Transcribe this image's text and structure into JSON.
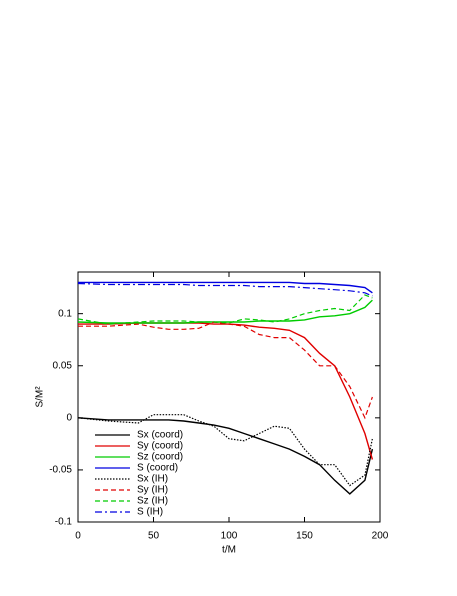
{
  "chart_data": {
    "type": "line",
    "xlabel": "t/M",
    "ylabel": "S/M²",
    "x": [
      0,
      20,
      40,
      50,
      60,
      70,
      80,
      90,
      100,
      110,
      120,
      130,
      140,
      150,
      160,
      170,
      180,
      190,
      195
    ],
    "xlim": [
      0,
      200
    ],
    "xticks": [
      0,
      50,
      100,
      150,
      200
    ],
    "ylim": [
      -0.1,
      0.14
    ],
    "yticks": [
      -0.1,
      -0.05,
      0,
      0.05,
      0.1
    ],
    "legend": "lower left",
    "series": [
      {
        "name": "Sx (coord)",
        "color": "#000000",
        "dash": "solid",
        "values": [
          0,
          -0.002,
          -0.002,
          -0.002,
          -0.002,
          -0.003,
          -0.005,
          -0.007,
          -0.01,
          -0.015,
          -0.02,
          -0.025,
          -0.03,
          -0.037,
          -0.045,
          -0.06,
          -0.073,
          -0.06,
          -0.03
        ]
      },
      {
        "name": "Sy (coord)",
        "color": "#e00000",
        "dash": "solid",
        "values": [
          0.09,
          0.09,
          0.091,
          0.091,
          0.091,
          0.091,
          0.091,
          0.09,
          0.09,
          0.089,
          0.087,
          0.086,
          0.084,
          0.077,
          0.062,
          0.05,
          0.02,
          -0.015,
          -0.04
        ]
      },
      {
        "name": "Sz (coord)",
        "color": "#00cc00",
        "dash": "solid",
        "values": [
          0.092,
          0.091,
          0.091,
          0.091,
          0.091,
          0.091,
          0.092,
          0.092,
          0.092,
          0.092,
          0.093,
          0.093,
          0.093,
          0.094,
          0.097,
          0.098,
          0.1,
          0.106,
          0.113
        ]
      },
      {
        "name": "S (coord)",
        "color": "#0000e0",
        "dash": "solid",
        "values": [
          0.13,
          0.13,
          0.13,
          0.13,
          0.13,
          0.13,
          0.13,
          0.13,
          0.13,
          0.13,
          0.13,
          0.13,
          0.13,
          0.129,
          0.129,
          0.128,
          0.127,
          0.125,
          0.12
        ]
      },
      {
        "name": "Sx (IH)",
        "color": "#000000",
        "dash": "dotted",
        "values": [
          0,
          -0.003,
          -0.005,
          0.003,
          0.003,
          0.003,
          -0.003,
          -0.008,
          -0.02,
          -0.022,
          -0.015,
          -0.008,
          -0.01,
          -0.03,
          -0.045,
          -0.045,
          -0.065,
          -0.055,
          -0.02
        ]
      },
      {
        "name": "Sy (IH)",
        "color": "#e00000",
        "dash": "dashed",
        "values": [
          0.088,
          0.088,
          0.09,
          0.087,
          0.085,
          0.085,
          0.086,
          0.092,
          0.09,
          0.088,
          0.08,
          0.077,
          0.077,
          0.065,
          0.05,
          0.05,
          0.03,
          0,
          0.02
        ]
      },
      {
        "name": "Sz (IH)",
        "color": "#00cc00",
        "dash": "dashed",
        "values": [
          0.095,
          0.09,
          0.092,
          0.093,
          0.093,
          0.093,
          0.092,
          0.092,
          0.091,
          0.095,
          0.094,
          0.092,
          0.095,
          0.1,
          0.103,
          0.105,
          0.103,
          0.118,
          0.115
        ]
      },
      {
        "name": "S (IH)",
        "color": "#0000e0",
        "dash": "dashdot",
        "values": [
          0.129,
          0.128,
          0.128,
          0.128,
          0.128,
          0.128,
          0.127,
          0.127,
          0.127,
          0.127,
          0.126,
          0.126,
          0.126,
          0.125,
          0.124,
          0.123,
          0.122,
          0.12,
          0.117
        ]
      }
    ]
  }
}
